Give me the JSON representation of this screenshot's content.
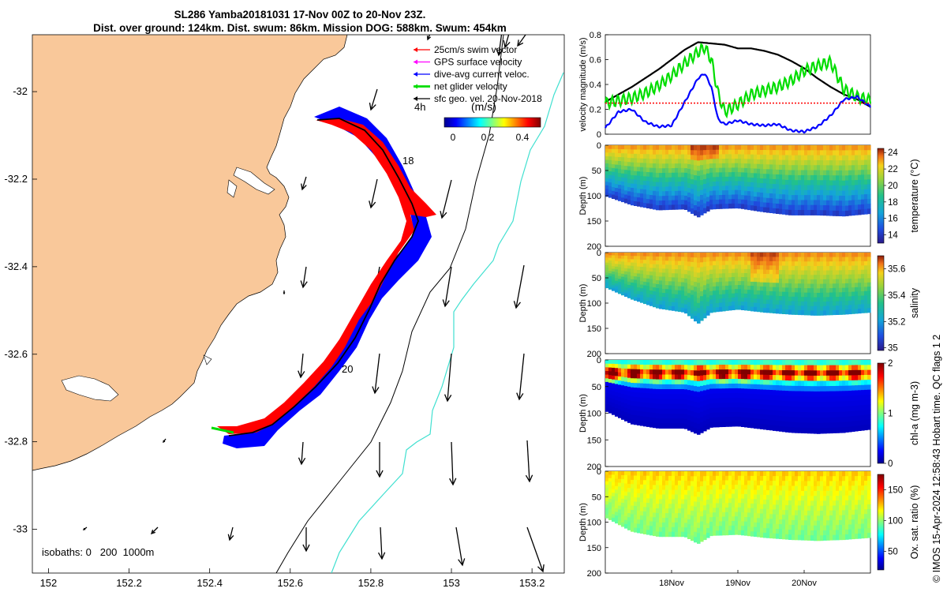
{
  "header": {
    "title_line1": "SL286 Yamba20181031 17-Nov 00Z to 20-Nov 23Z.",
    "title_line2": "Dist. over ground: 124km. Dist. swum: 86km. Mission DOG: 588km. Swum: 454km"
  },
  "footer_note": "© IMOS 15-Apr-2024 12:58:43 Hobart time. QC flags 1  2",
  "colors": {
    "land": "#f9c89a",
    "swim_vector": "#ff0000",
    "gps_velocity": "#ff00ff",
    "dive_avg_current": "#0000ff",
    "net_glider_velocity": "#00dd00",
    "sfc_geo_vel": "#000000",
    "isobath_200": "#000000",
    "isobath_1000": "#40e0d0"
  },
  "map": {
    "legend": [
      {
        "label": "25cm/s swim vector",
        "color": "#ff0000",
        "icon": "arrow-icon"
      },
      {
        "label": "GPS surface velocity",
        "color": "#ff00ff",
        "icon": "arrow-icon"
      },
      {
        "label": "dive-avg current veloc.",
        "color": "#0000ff",
        "icon": "arrow-icon"
      },
      {
        "label": "net glider velocity",
        "color": "#00dd00",
        "icon": "arrow-icon"
      },
      {
        "label": "sfc geo. vel. 20-Nov-2018",
        "color": "#000000",
        "icon": "arrow-icon"
      }
    ],
    "interval_label": "4h",
    "colorbar": {
      "title": "(m/s)",
      "ticks": [
        "0",
        "0.2",
        "0.4"
      ],
      "range": [
        0,
        0.5
      ]
    },
    "isobaths_label": "isobaths: 0   200  1000m",
    "day_labels": [
      "18",
      "20"
    ],
    "x_ticks": [
      "152",
      "152.2",
      "152.4",
      "152.6",
      "152.8",
      "153",
      "153.2"
    ],
    "y_ticks": [
      "-32",
      "-32.2",
      "-32.4",
      "-32.6",
      "-32.8",
      "-33"
    ],
    "xlim": [
      151.96,
      153.28
    ],
    "ylim": [
      -33.1,
      -31.87
    ]
  },
  "chart_data": [
    {
      "type": "line",
      "ylabel": "velocity magnitude (m/s)",
      "ylim": [
        0,
        0.8
      ],
      "yticks": [
        "0",
        "0.2",
        "0.4",
        "0.6",
        "0.8"
      ],
      "xlim": [
        17,
        21
      ],
      "series": [
        {
          "color": "#000000",
          "x": [
            17.0,
            17.4,
            17.8,
            18.2,
            18.4,
            18.6,
            18.8,
            19.0,
            19.2,
            19.4,
            19.6,
            19.8,
            20.0,
            20.2,
            20.4,
            20.6,
            20.8,
            21.0
          ],
          "values": [
            0.26,
            0.38,
            0.52,
            0.68,
            0.74,
            0.73,
            0.72,
            0.69,
            0.69,
            0.67,
            0.64,
            0.59,
            0.53,
            0.45,
            0.38,
            0.32,
            0.28,
            0.22
          ]
        },
        {
          "color": "#00dd00",
          "x": [
            17.0,
            17.2,
            17.4,
            17.6,
            17.8,
            18.0,
            18.2,
            18.4,
            18.5,
            18.6,
            18.7,
            18.8,
            19.0,
            19.2,
            19.4,
            19.6,
            19.8,
            20.0,
            20.2,
            20.4,
            20.6,
            20.8,
            21.0
          ],
          "values": [
            0.25,
            0.27,
            0.29,
            0.33,
            0.39,
            0.47,
            0.57,
            0.66,
            0.7,
            0.6,
            0.33,
            0.18,
            0.24,
            0.32,
            0.35,
            0.38,
            0.43,
            0.51,
            0.55,
            0.58,
            0.36,
            0.3,
            0.27
          ]
        },
        {
          "color": "#0000ff",
          "x": [
            17.0,
            17.2,
            17.4,
            17.6,
            17.8,
            18.0,
            18.2,
            18.4,
            18.5,
            18.6,
            18.7,
            18.8,
            19.0,
            19.2,
            19.4,
            19.6,
            19.8,
            20.0,
            20.2,
            20.4,
            20.6,
            20.8,
            21.0
          ],
          "values": [
            0.05,
            0.18,
            0.2,
            0.1,
            0.06,
            0.07,
            0.26,
            0.45,
            0.49,
            0.38,
            0.12,
            0.08,
            0.11,
            0.08,
            0.07,
            0.08,
            0.03,
            0.02,
            0.06,
            0.15,
            0.28,
            0.3,
            0.22
          ]
        },
        {
          "color": "#ff0000",
          "x": [
            17.0,
            21.0
          ],
          "values": [
            0.25,
            0.25
          ]
        }
      ]
    },
    {
      "type": "heatmap",
      "ylabel": "Depth (m)",
      "clabel": "temperature (°C)",
      "ylim": [
        200,
        0
      ],
      "yticks": [
        "0",
        "50",
        "100",
        "150",
        "200"
      ],
      "cticks": [
        "14",
        "16",
        "18",
        "20",
        "22",
        "24"
      ],
      "crange": [
        13,
        24.5
      ],
      "xlim": [
        17,
        21
      ],
      "bottom_depth": {
        "x": [
          17.0,
          17.4,
          17.8,
          18.2,
          18.4,
          18.6,
          19.0,
          19.4,
          19.8,
          20.2,
          20.6,
          21.0
        ],
        "values": [
          100,
          118,
          128,
          126,
          142,
          126,
          124,
          132,
          138,
          138,
          140,
          135
        ]
      },
      "surface_value": 22.5,
      "bottom_value": 14.0
    },
    {
      "type": "heatmap",
      "ylabel": "Depth (m)",
      "clabel": "salinity",
      "ylim": [
        200,
        0
      ],
      "yticks": [
        "0",
        "50",
        "100",
        "150",
        "200"
      ],
      "cticks": [
        "35",
        "35.2",
        "35.4",
        "35.6"
      ],
      "crange": [
        34.98,
        35.7
      ],
      "xlim": [
        17,
        21
      ],
      "bottom_depth": {
        "x": [
          17.0,
          17.4,
          17.8,
          18.2,
          18.4,
          18.6,
          19.0,
          19.4,
          19.8,
          20.2,
          20.6,
          21.0
        ],
        "values": [
          68,
          92,
          110,
          118,
          140,
          118,
          112,
          118,
          122,
          124,
          122,
          118
        ]
      },
      "surface_value": 35.58,
      "bottom_value": 35.18
    },
    {
      "type": "heatmap",
      "ylabel": "Depth (m)",
      "clabel": "chl-a (mg m-3)",
      "ylim": [
        200,
        0
      ],
      "yticks": [
        "0",
        "50",
        "100",
        "150",
        "200"
      ],
      "cticks": [
        "0",
        "1",
        "2"
      ],
      "crange": [
        0,
        2
      ],
      "xlim": [
        17,
        21
      ],
      "bottom_depth": {
        "x": [
          17.0,
          17.4,
          17.8,
          18.2,
          18.4,
          18.6,
          19.0,
          19.4,
          19.8,
          20.2,
          20.6,
          21.0
        ],
        "values": [
          95,
          120,
          128,
          128,
          140,
          126,
          124,
          130,
          136,
          138,
          136,
          130
        ]
      },
      "surface_value": 1.1,
      "max_layer_value": 1.9,
      "bottom_value": 0.1
    },
    {
      "type": "heatmap",
      "ylabel": "Depth (m)",
      "clabel": "Ox. sat. ratio (%)",
      "ylim": [
        200,
        0
      ],
      "yticks": [
        "0",
        "50",
        "100",
        "150",
        "200"
      ],
      "cticks": [
        "50",
        "100",
        "150"
      ],
      "crange": [
        20,
        175
      ],
      "xlim": [
        17,
        21
      ],
      "xticks": [
        "18Nov",
        "19Nov",
        "20Nov"
      ],
      "xtick_values": [
        18,
        19,
        20
      ],
      "bottom_depth": {
        "x": [
          17.0,
          17.4,
          17.8,
          18.2,
          18.4,
          18.6,
          19.0,
          19.4,
          19.8,
          20.2,
          20.6,
          21.0
        ],
        "values": [
          90,
          118,
          128,
          128,
          142,
          126,
          124,
          130,
          134,
          136,
          134,
          130
        ]
      },
      "surface_value": 125,
      "bottom_value": 95
    }
  ]
}
